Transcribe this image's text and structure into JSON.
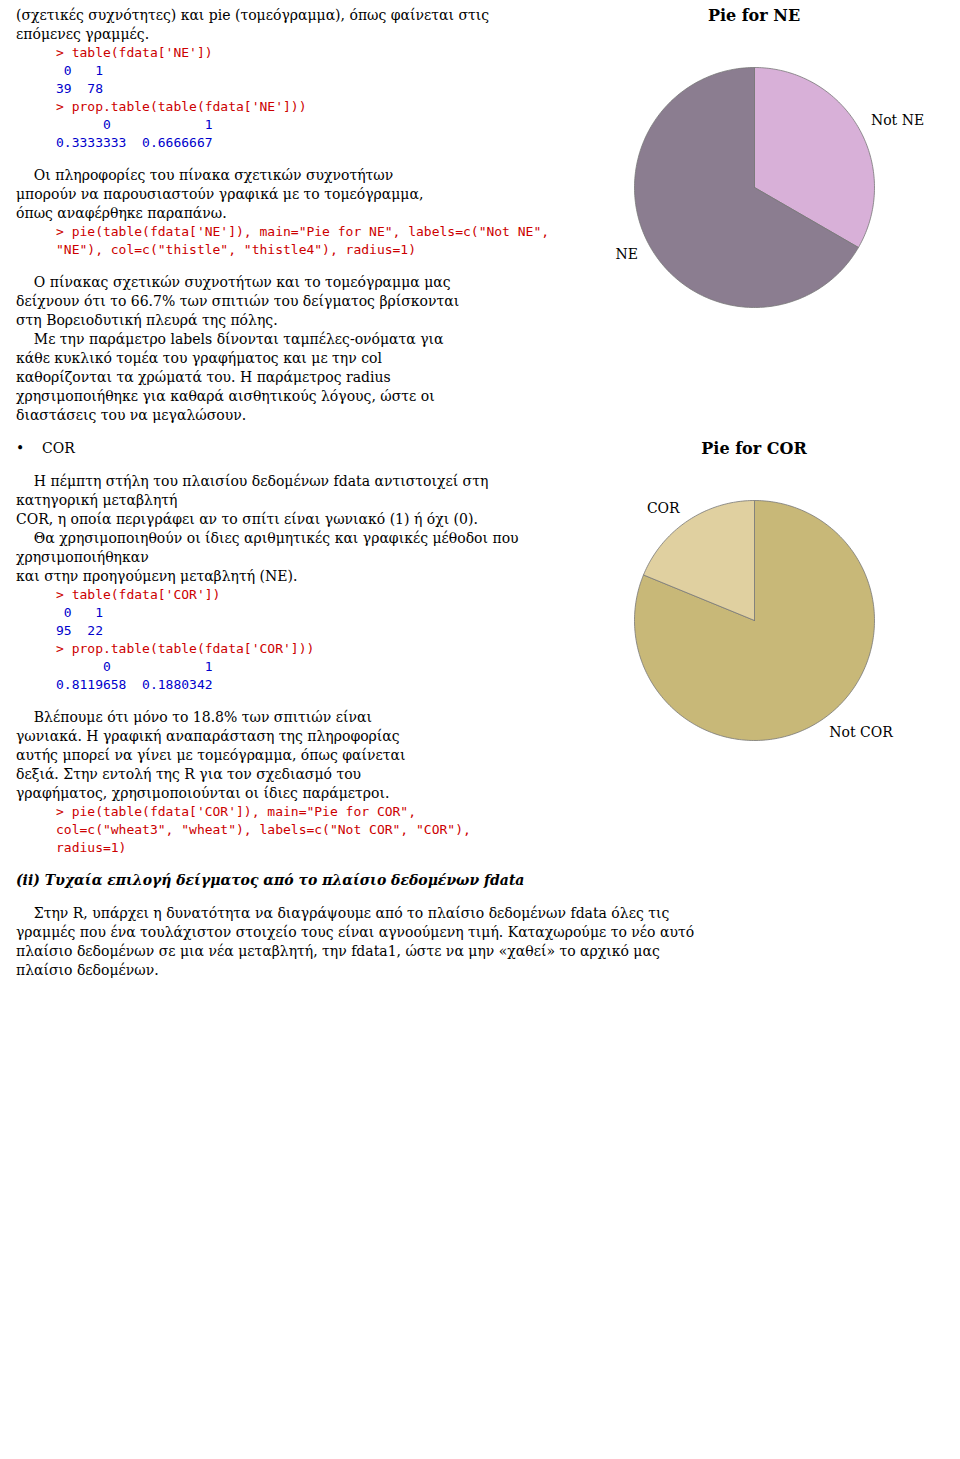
{
  "chart_data": [
    {
      "type": "pie",
      "title": "Pie for NE",
      "categories": [
        "Not NE",
        "NE"
      ],
      "values": [
        39,
        78
      ],
      "colors": [
        "#d8b0d8",
        "#8b7d90"
      ],
      "annotations": [
        [
          {
            "text": "(σχετικές συχνότητες) και pie (τομεόγραμμα), όπως φαίνεται στις επόμενες γραμμές.",
            "color": "#000000"
          },
          {
            "text": "> table(fdata['NE'])",
            "color": "#cc0000",
            "mono": true
          },
          {
            "text": " 0   1",
            "color": "#0000cc",
            "mono": true
          },
          {
            "text": "39  78",
            "color": "#0000cc",
            "mono": true
          },
          {
            "text": "> prop.table(table(fdata['NE']))",
            "color": "#cc0000",
            "mono": true
          },
          {
            "text": "      0            1",
            "color": "#0000cc",
            "mono": true
          },
          {
            "text": "0.3333333  0.6666667",
            "color": "#0000cc",
            "mono": true
          }
        ],
        [
          {
            "text": "    Οι πληροφορίες του πίνακα σχετικών συχνοτήτων",
            "color": "#000000"
          },
          {
            "text": "μπορούν να παρουσιαστούν γραφικά με το τομεόγραμμα,",
            "color": "#000000"
          },
          {
            "text": "όπως αναφέρθηκε παραπάνω.",
            "color": "#000000"
          },
          {
            "text": "> pie(table(fdata['NE']), main=\"Pie for NE\", labels=c(\"Not NE\",",
            "color": "#cc0000",
            "mono": true
          },
          {
            "text": "\"NE\"), col=c(\"thistle\", \"thistle4\"), radius=1)",
            "color": "#cc0000",
            "mono": true
          }
        ],
        [
          {
            "text": "    Ο πίνακας σχετικών συχνοτήτων και το τομεόγραμμα μας",
            "color": "#000000"
          },
          {
            "text": "δείχνουν ότι το 66.7% των σπιτιών του δείγματος βρίσκονται",
            "color": "#000000"
          },
          {
            "text": "στη Βορειοδυτική πλευρά της πόλης.",
            "color": "#000000"
          },
          {
            "text": "    Με την παράμετρο labels δίνονται ταμπέλες-ονόματα για",
            "color": "#000000"
          },
          {
            "text": "κάθε κυκλικό τομέα του γραφήματος και με την col",
            "color": "#000000"
          },
          {
            "text": "καθορίζονται τα χρώματά του. Η παράμετρος radius",
            "color": "#000000"
          },
          {
            "text": "χρησιμοποιήθηκε για καθαρά αισθητικούς λόγους, ώστε οι",
            "color": "#000000"
          },
          {
            "text": "διαστάσεις του να μεγαλώσουν.",
            "color": "#000000"
          }
        ]
      ]
    },
    {
      "type": "pie",
      "title": "Pie for COR",
      "categories": [
        "Not COR",
        "COR"
      ],
      "values": [
        95,
        22
      ],
      "colors": [
        "#c8b878",
        "#e0d0a0"
      ],
      "annotations": [
        [
          {
            "text": "•    COR",
            "color": "#000000"
          }
        ],
        [
          {
            "text": "    Η πέμπτη στήλη του πλαισίου δεδομένων fdata αντιστοιχεί στη κατηγορική μεταβλητή",
            "color": "#000000"
          },
          {
            "text": "COR, η οποία περιγράφει αν το σπίτι είναι γωνιακό (1) ή όχι (0).",
            "color": "#000000"
          },
          {
            "text": "    Θα χρησιμοποιηθούν οι ίδιες αριθμητικές και γραφικές μέθοδοι που χρησιμοποιήθηκαν",
            "color": "#000000"
          },
          {
            "text": "και στην προηγούμενη μεταβλητή (ΝΕ).",
            "color": "#000000"
          },
          {
            "text": "> table(fdata['COR'])",
            "color": "#cc0000",
            "mono": true
          },
          {
            "text": " 0   1",
            "color": "#0000cc",
            "mono": true
          },
          {
            "text": "95  22",
            "color": "#0000cc",
            "mono": true
          },
          {
            "text": "> prop.table(table(fdata['COR']))",
            "color": "#cc0000",
            "mono": true
          },
          {
            "text": "      0            1",
            "color": "#0000cc",
            "mono": true
          },
          {
            "text": "0.8119658  0.1880342",
            "color": "#0000cc",
            "mono": true
          }
        ],
        [
          {
            "text": "    Βλέπουμε ότι μόνο το 18.8% των σπιτιών είναι",
            "color": "#000000"
          },
          {
            "text": "γωνιακά. Η γραφική αναπαράσταση της πληροφορίας",
            "color": "#000000"
          },
          {
            "text": "αυτής μπορεί να γίνει με τομεόγραμμα, όπως φαίνεται",
            "color": "#000000"
          },
          {
            "text": "δεξιά. Στην εντολή της R για τον σχεδιασμό του",
            "color": "#000000"
          },
          {
            "text": "γραφήματος, χρησιμοποιούνται οι ίδιες παράμετροι.",
            "color": "#000000"
          },
          {
            "text": "> pie(table(fdata['COR']), main=\"Pie for COR\",",
            "color": "#cc0000",
            "mono": true
          },
          {
            "text": "col=c(\"wheat3\", \"wheat\"), labels=c(\"Not COR\", \"COR\"),",
            "color": "#cc0000",
            "mono": true
          },
          {
            "text": "radius=1)",
            "color": "#cc0000",
            "mono": true
          }
        ],
        [
          {
            "text": "(ii) Τυχαία επιλογή δείγματος από το πλαίσιο δεδομένων fdata",
            "color": "#000000",
            "bold": true,
            "italic": true
          }
        ],
        [
          {
            "text": "    Στην R, υπάρχει η δυνατότητα να διαγράψουμε από το πλαίσιο δεδομένων fdata όλες τις",
            "color": "#000000"
          },
          {
            "text": "γραμμές που ένα τουλάχιστον στοιχείο τους είναι αγνοούμενη τιμή. Καταχωρούμε το νέο αυτό",
            "color": "#000000"
          },
          {
            "text": "πλαίσιο δεδομένων σε μια νέα μεταβλητή, την fdata1, ώστε να μην «χαθεί» το αρχικό μας",
            "color": "#000000"
          },
          {
            "text": "πλαίσιο δεδομένων.",
            "color": "#000000"
          }
        ]
      ]
    }
  ]
}
